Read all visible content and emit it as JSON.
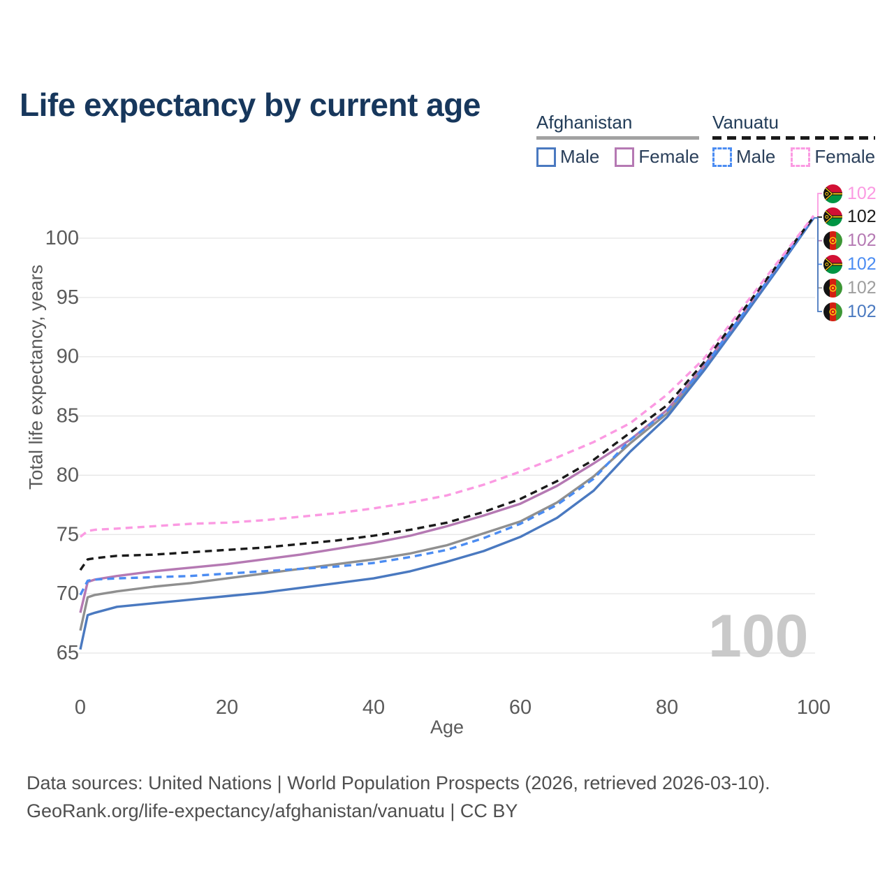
{
  "title": "Life expectancy by current age",
  "legend": {
    "groups": [
      {
        "name": "Afghanistan",
        "line_style": "solid",
        "underline_color": "#a2a2a2",
        "items": [
          {
            "label": "Male",
            "color": "#4a79c0"
          },
          {
            "label": "Female",
            "color": "#b579b3"
          }
        ]
      },
      {
        "name": "Vanuatu",
        "line_style": "dashed",
        "underline_color": "#1a1a1a",
        "items": [
          {
            "label": "Male",
            "color": "#4b8cf2"
          },
          {
            "label": "Female",
            "color": "#fb9ae2"
          }
        ]
      }
    ]
  },
  "watermark_age": "100",
  "footer": {
    "line1": "Data sources: United Nations | World Population Prospects (2026, retrieved 2026-03-10).",
    "line2": "GeoRank.org/life-expectancy/afghanistan/vanuatu | CC BY"
  },
  "chart_data": {
    "type": "line",
    "title": "Life expectancy by current age",
    "xlabel": "Age",
    "ylabel": "Total life expectancy, years",
    "xlim": [
      0,
      100
    ],
    "ylim": [
      63.5,
      103.5
    ],
    "x_ticks": [
      0,
      20,
      40,
      60,
      80,
      100
    ],
    "y_ticks": [
      65,
      70,
      75,
      80,
      85,
      90,
      95,
      100
    ],
    "grid": "horizontal-only",
    "legend_position": "top-right",
    "axis_text_color": "#5a5a5a",
    "grid_color": "#e5e5e5",
    "ages": [
      0,
      1,
      2,
      5,
      10,
      15,
      20,
      25,
      30,
      35,
      40,
      45,
      50,
      55,
      60,
      65,
      70,
      75,
      80,
      85,
      90,
      95,
      100
    ],
    "series": [
      {
        "name": "Afghanistan Both sexes",
        "country": "Afghanistan",
        "sex": "Both sexes",
        "style": "solid",
        "color": "#8f8f8f",
        "values": [
          66.9,
          69.7,
          69.9,
          70.2,
          70.6,
          70.9,
          71.3,
          71.7,
          72.1,
          72.5,
          72.9,
          73.4,
          74.1,
          75.1,
          76.1,
          77.7,
          79.9,
          82.7,
          85.2,
          89.0,
          93.2,
          97.4,
          101.7
        ]
      },
      {
        "name": "Afghanistan Female",
        "country": "Afghanistan",
        "sex": "Female",
        "style": "solid",
        "color": "#b579b3",
        "values": [
          68.4,
          71.0,
          71.2,
          71.5,
          71.9,
          72.2,
          72.5,
          72.9,
          73.3,
          73.8,
          74.3,
          74.9,
          75.7,
          76.6,
          77.6,
          79.1,
          81.0,
          83.0,
          85.5,
          89.2,
          93.3,
          97.5,
          101.8
        ]
      },
      {
        "name": "Afghanistan Male",
        "country": "Afghanistan",
        "sex": "Male",
        "style": "solid",
        "color": "#4a79c0",
        "values": [
          65.3,
          68.2,
          68.4,
          68.9,
          69.2,
          69.5,
          69.8,
          70.1,
          70.5,
          70.9,
          71.3,
          71.9,
          72.7,
          73.6,
          74.8,
          76.4,
          78.7,
          82.0,
          84.9,
          88.8,
          93.0,
          97.3,
          101.7
        ]
      },
      {
        "name": "Vanuatu Male",
        "country": "Vanuatu",
        "sex": "Male",
        "style": "dashed",
        "color": "#4b8cf2",
        "values": [
          69.9,
          71.1,
          71.2,
          71.3,
          71.4,
          71.5,
          71.7,
          71.9,
          72.1,
          72.3,
          72.6,
          73.1,
          73.7,
          74.7,
          75.9,
          77.5,
          79.7,
          83.0,
          85.4,
          89.1,
          93.3,
          97.5,
          101.8
        ]
      },
      {
        "name": "Vanuatu Both sexes",
        "country": "Vanuatu",
        "sex": "Both sexes",
        "style": "dashed",
        "color": "#1a1a1a",
        "values": [
          72.0,
          72.9,
          73.0,
          73.2,
          73.3,
          73.5,
          73.7,
          73.9,
          74.2,
          74.5,
          74.9,
          75.4,
          76.0,
          76.9,
          78.0,
          79.5,
          81.3,
          83.6,
          85.9,
          89.5,
          93.6,
          97.7,
          101.8
        ]
      },
      {
        "name": "Vanuatu Female",
        "country": "Vanuatu",
        "sex": "Female",
        "style": "dashed",
        "color": "#fb9ae2",
        "values": [
          74.8,
          75.3,
          75.4,
          75.5,
          75.7,
          75.9,
          76.0,
          76.2,
          76.5,
          76.8,
          77.2,
          77.7,
          78.3,
          79.2,
          80.3,
          81.5,
          82.8,
          84.4,
          86.8,
          89.8,
          93.9,
          97.9,
          101.9
        ]
      }
    ],
    "end_labels": [
      {
        "value": "102",
        "series": "Vanuatu Female",
        "color": "#fb9ae2",
        "flag": "vanuatu-flag-icon"
      },
      {
        "value": "102",
        "series": "Vanuatu Both sexes",
        "color": "#1a1a1a",
        "flag": "vanuatu-flag-icon"
      },
      {
        "value": "102",
        "series": "Afghanistan Female",
        "color": "#b579b3",
        "flag": "afghanistan-flag-icon"
      },
      {
        "value": "102",
        "series": "Vanuatu Male",
        "color": "#4b8cf2",
        "flag": "vanuatu-flag-icon"
      },
      {
        "value": "102",
        "series": "Afghanistan Both sexes",
        "color": "#9e9e9e",
        "flag": "afghanistan-flag-icon"
      },
      {
        "value": "102",
        "series": "Afghanistan Male",
        "color": "#4a79c0",
        "flag": "afghanistan-flag-icon"
      }
    ]
  }
}
